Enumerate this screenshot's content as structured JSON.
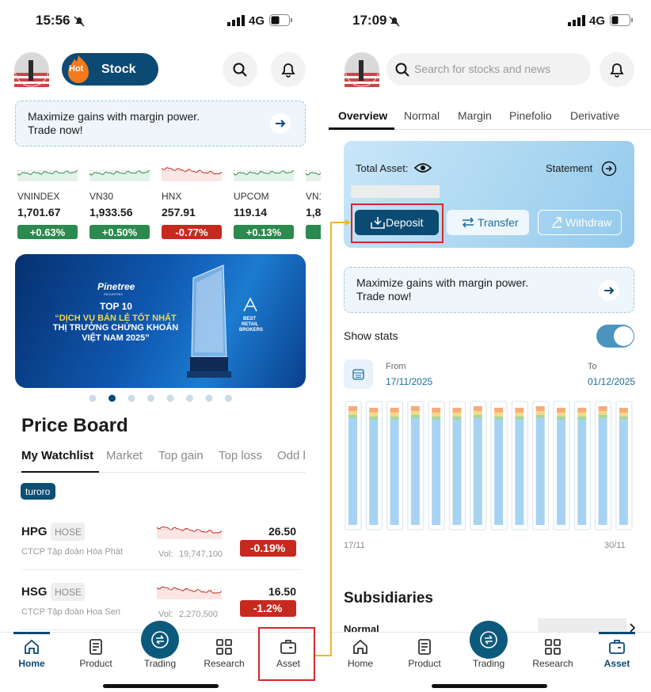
{
  "left_screen": {
    "status_bar": {
      "time": "15:56",
      "network": "4G"
    },
    "header": {
      "hot_badge": "Hot",
      "product": "Stock"
    },
    "promo_banner": {
      "line1": "Maximize gains with margin power.",
      "line2": "Trade now!"
    },
    "indices": [
      {
        "name": "VNINDEX",
        "value": "1,701.67",
        "change": "+0.63%"
      },
      {
        "name": "VN30",
        "value": "1,933.56",
        "change": "+0.50%"
      },
      {
        "name": "HNX",
        "value": "257.91",
        "change": "-0.77%"
      },
      {
        "name": "UPCOM",
        "value": "119.14",
        "change": "+0.13%"
      },
      {
        "name": "VN1",
        "value": "1,8",
        "change": "+"
      }
    ],
    "ad_banner": {
      "brand": "Pinetree",
      "brand_sub": "SECURITIES",
      "line1": "TOP 10",
      "line2": "“DỊCH VỤ BÁN LẺ TỐT NHẤT",
      "line3": "THỊ TRƯỜNG CHỨNG KHOÁN",
      "line4": "VIỆT NAM 2025”",
      "award": [
        "BEST",
        "RETAIL",
        "BROKERS"
      ]
    },
    "price_board": {
      "title": "Price Board",
      "tabs": [
        "My Watchlist",
        "Market",
        "Top gain",
        "Top loss",
        "Odd l"
      ],
      "watchlist": "turoro",
      "stocks": [
        {
          "symbol": "HPG",
          "exchange": "HOSE",
          "company": "CTCP Tập đoàn Hòa Phát",
          "vol_label": "Vol:",
          "volume": "19,747,100",
          "price": "26.50",
          "change": "-0.19%"
        },
        {
          "symbol": "HSG",
          "exchange": "HOSE",
          "company": "CTCP Tập đoàn Hoa Sen",
          "vol_label": "Vol:",
          "volume": "2,270,500",
          "price": "16.50",
          "change": "-1.2%"
        }
      ]
    },
    "bottom_nav": [
      "Home",
      "Product",
      "Trading",
      "Research",
      "Asset"
    ]
  },
  "right_screen": {
    "status_bar": {
      "time": "17:09",
      "network": "4G"
    },
    "search_placeholder": "Search for stocks and news",
    "tabs": [
      "Overview",
      "Normal",
      "Margin",
      "Pinefolio",
      "Derivative"
    ],
    "asset_card": {
      "total_asset_label": "Total Asset:",
      "statement": "Statement",
      "buttons": [
        "Deposit",
        "Transfer",
        "Withdraw"
      ]
    },
    "promo_banner": {
      "line1": "Maximize gains with margin power.",
      "line2": "Trade now!"
    },
    "show_stats": "Show stats",
    "date_range": {
      "from_label": "From",
      "from": "17/11/2025",
      "to_label": "To",
      "to": "01/12/2025"
    },
    "chart_axis": [
      "17/11",
      "30/11"
    ],
    "subsidiaries": {
      "title": "Subsidiaries",
      "first_item": "Normal"
    },
    "bottom_nav": [
      "Home",
      "Product",
      "Trading",
      "Research",
      "Asset"
    ]
  }
}
